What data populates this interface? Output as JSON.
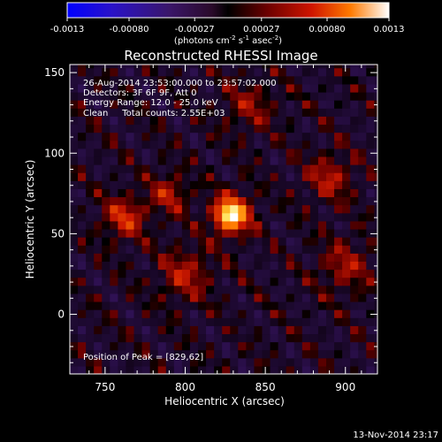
{
  "colorbar": {
    "tick_labels": [
      "-0.0013",
      "-0.00080",
      "-0.00027",
      "0.00027",
      "0.00080",
      "0.0013"
    ],
    "ticks": [
      -0.0013,
      -0.0008,
      -0.00027,
      0.00027,
      0.0008,
      0.0013
    ],
    "range": [
      -0.0013,
      0.0013
    ],
    "unit_main": "(photons cm",
    "unit_sup1": "-2",
    "unit_mid": " s",
    "unit_sup2": "-1",
    "unit_mid2": " asec",
    "unit_sup3": "-2",
    "unit_end": ")"
  },
  "chart_data": {
    "type": "heatmap",
    "title": "Reconstructed RHESSI Image",
    "xlabel": "Heliocentric X (arcsec)",
    "ylabel": "Heliocentric Y (arcsec)",
    "xlim": [
      728,
      920
    ],
    "ylim": [
      -37,
      155
    ],
    "x_ticks": [
      750,
      800,
      850,
      900
    ],
    "y_ticks": [
      0,
      50,
      100,
      150
    ],
    "x_tick_labels": [
      "750",
      "800",
      "850",
      "900"
    ],
    "y_tick_labels": [
      "0",
      "50",
      "100",
      "150"
    ],
    "annotations": [
      "26-Aug-2014 23:53:00.000 to 23:57:02.000",
      "Detectors: 3F 6F 9F, Att 0",
      "Energy Range: 12.0 - 25.0 keV",
      "Clean     Total counts: 2.55E+03"
    ],
    "peak_label": "Position of Peak = [829,62]",
    "peak": [
      829,
      62
    ],
    "sources": [
      {
        "x": 829,
        "y": 62,
        "amp": 1.0,
        "sigma": 9
      },
      {
        "x": 762,
        "y": 60,
        "amp": 0.55,
        "sigma": 10
      },
      {
        "x": 790,
        "y": 75,
        "amp": 0.45,
        "sigma": 9
      },
      {
        "x": 800,
        "y": 25,
        "amp": 0.45,
        "sigma": 12
      },
      {
        "x": 890,
        "y": 85,
        "amp": 0.45,
        "sigma": 11
      },
      {
        "x": 900,
        "y": 30,
        "amp": 0.4,
        "sigma": 12
      },
      {
        "x": 840,
        "y": 130,
        "amp": 0.35,
        "sigma": 12
      }
    ]
  },
  "footer": {
    "timestamp": "13-Nov-2014 23:17"
  },
  "colors": {
    "background": "#000000",
    "text": "#ffffff"
  }
}
